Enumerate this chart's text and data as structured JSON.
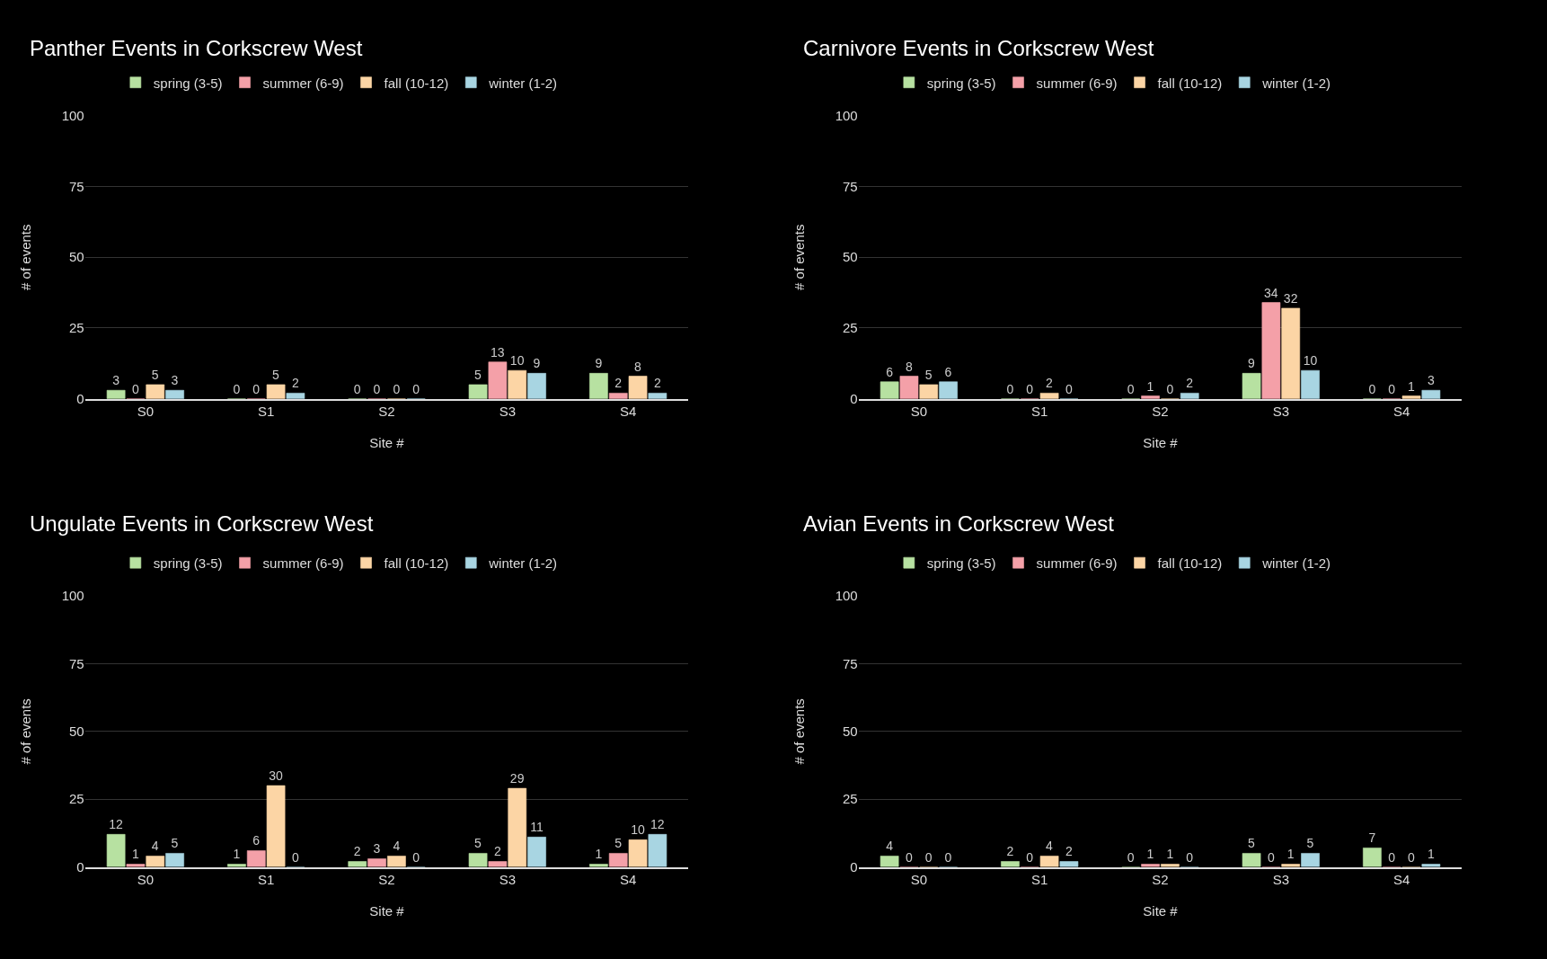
{
  "chart_data": [
    {
      "type": "bar",
      "title": "Panther Events in Corkscrew West",
      "xlabel": "Site #",
      "ylabel": "# of events",
      "categories": [
        "S0",
        "S1",
        "S2",
        "S3",
        "S4"
      ],
      "ylim": [
        0,
        100
      ],
      "yticks": [
        0,
        25,
        50,
        75,
        100
      ],
      "grid": "y",
      "legend": "top",
      "data_labels": true,
      "series": [
        {
          "name": "spring (3-5)",
          "color": "#b7e1a1",
          "values": [
            3,
            0,
            0,
            5,
            9
          ]
        },
        {
          "name": "summer (6-9)",
          "color": "#f4a0a8",
          "values": [
            0,
            0,
            0,
            13,
            2
          ]
        },
        {
          "name": "fall (10-12)",
          "color": "#fcd5a5",
          "values": [
            5,
            5,
            0,
            10,
            8
          ]
        },
        {
          "name": "winter (1-2)",
          "color": "#a8d5e2",
          "values": [
            3,
            2,
            0,
            9,
            2
          ]
        }
      ]
    },
    {
      "type": "bar",
      "title": "Carnivore Events in Corkscrew West",
      "xlabel": "Site #",
      "ylabel": "# of events",
      "categories": [
        "S0",
        "S1",
        "S2",
        "S3",
        "S4"
      ],
      "ylim": [
        0,
        100
      ],
      "yticks": [
        0,
        25,
        50,
        75,
        100
      ],
      "grid": "y",
      "legend": "top",
      "data_labels": true,
      "series": [
        {
          "name": "spring (3-5)",
          "color": "#b7e1a1",
          "values": [
            6,
            0,
            0,
            9,
            0
          ]
        },
        {
          "name": "summer (6-9)",
          "color": "#f4a0a8",
          "values": [
            8,
            0,
            1,
            34,
            0
          ]
        },
        {
          "name": "fall (10-12)",
          "color": "#fcd5a5",
          "values": [
            5,
            2,
            0,
            32,
            1
          ]
        },
        {
          "name": "winter (1-2)",
          "color": "#a8d5e2",
          "values": [
            6,
            0,
            2,
            10,
            3
          ]
        }
      ]
    },
    {
      "type": "bar",
      "title": "Ungulate Events in Corkscrew West",
      "xlabel": "Site #",
      "ylabel": "# of events",
      "categories": [
        "S0",
        "S1",
        "S2",
        "S3",
        "S4"
      ],
      "ylim": [
        0,
        100
      ],
      "yticks": [
        0,
        25,
        50,
        75,
        100
      ],
      "grid": "y",
      "legend": "top",
      "data_labels": true,
      "series": [
        {
          "name": "spring (3-5)",
          "color": "#b7e1a1",
          "values": [
            12,
            1,
            2,
            5,
            1
          ]
        },
        {
          "name": "summer (6-9)",
          "color": "#f4a0a8",
          "values": [
            1,
            6,
            3,
            2,
            5
          ]
        },
        {
          "name": "fall (10-12)",
          "color": "#fcd5a5",
          "values": [
            4,
            30,
            4,
            29,
            10
          ]
        },
        {
          "name": "winter (1-2)",
          "color": "#a8d5e2",
          "values": [
            5,
            0,
            0,
            11,
            12
          ]
        }
      ]
    },
    {
      "type": "bar",
      "title": "Avian Events in Corkscrew West",
      "xlabel": "Site #",
      "ylabel": "# of events",
      "categories": [
        "S0",
        "S1",
        "S2",
        "S3",
        "S4"
      ],
      "ylim": [
        0,
        100
      ],
      "yticks": [
        0,
        25,
        50,
        75,
        100
      ],
      "grid": "y",
      "legend": "top",
      "data_labels": true,
      "series": [
        {
          "name": "spring (3-5)",
          "color": "#b7e1a1",
          "values": [
            4,
            2,
            0,
            5,
            7
          ]
        },
        {
          "name": "summer (6-9)",
          "color": "#f4a0a8",
          "values": [
            0,
            0,
            1,
            0,
            0
          ]
        },
        {
          "name": "fall (10-12)",
          "color": "#fcd5a5",
          "values": [
            0,
            4,
            1,
            1,
            0
          ]
        },
        {
          "name": "winter (1-2)",
          "color": "#a8d5e2",
          "values": [
            0,
            2,
            0,
            5,
            1
          ]
        }
      ]
    }
  ]
}
